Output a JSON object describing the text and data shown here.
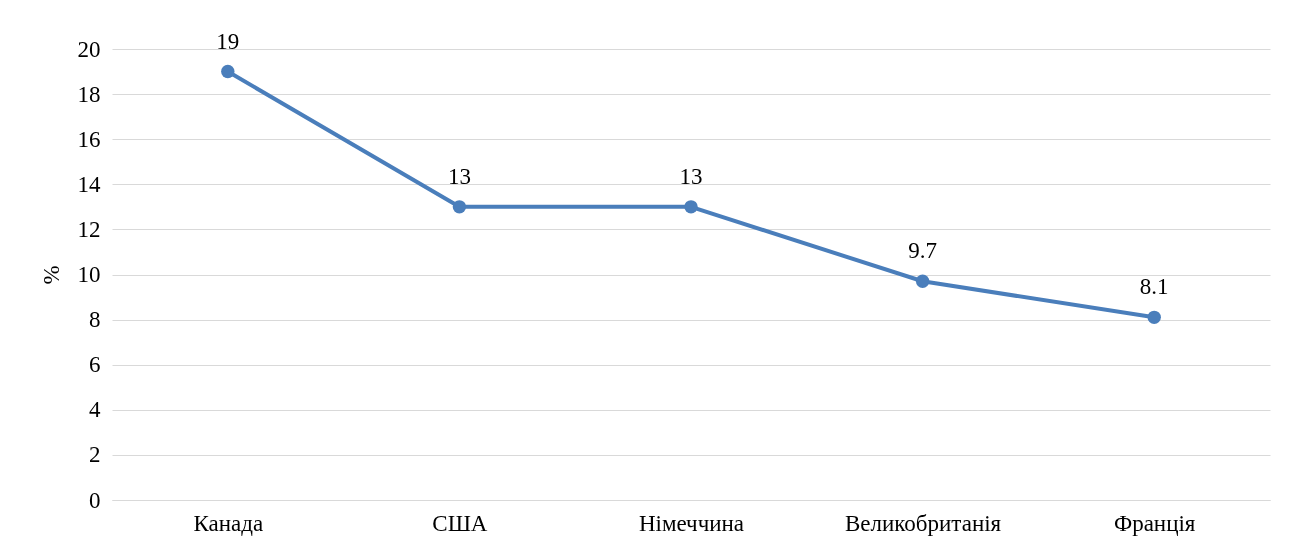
{
  "chart_data": {
    "type": "line",
    "ylabel": "%",
    "categories": [
      "Канада",
      "США",
      "Німеччина",
      "Великобританія",
      "Франція"
    ],
    "series": [
      {
        "color": "#4a7ebb",
        "values": [
          19,
          13,
          13,
          9.7,
          8.1
        ]
      }
    ],
    "ylim": [
      0,
      20
    ],
    "yticks": [
      0,
      2,
      4,
      6,
      8,
      10,
      12,
      14,
      16,
      18,
      20
    ],
    "grid": "y",
    "marker": "circle",
    "line_style": "solid",
    "data_labels": true,
    "legend": false
  }
}
